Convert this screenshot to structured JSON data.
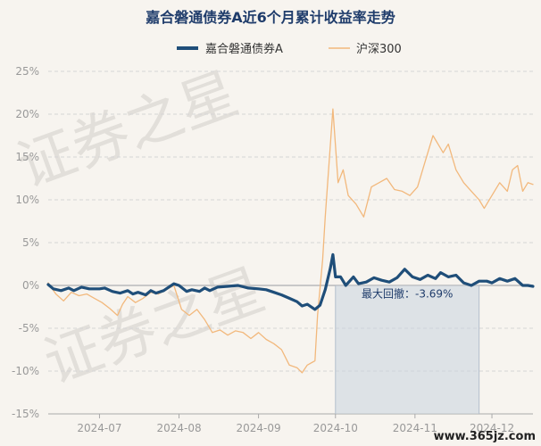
{
  "chart_data": {
    "type": "line",
    "title": "嘉合磐通债券A近6个月累计收益率走势",
    "y_ticks": [
      "25%",
      "20%",
      "15%",
      "10%",
      "5%",
      "0%",
      "-5%",
      "-10%",
      "-15%"
    ],
    "ylim": [
      -15,
      25
    ],
    "x_ticks": [
      {
        "label": "2024-07",
        "date": "2024-07-01"
      },
      {
        "label": "2024-08",
        "date": "2024-08-01"
      },
      {
        "label": "2024-09",
        "date": "2024-09-01"
      },
      {
        "label": "2024-10",
        "date": "2024-10-01"
      },
      {
        "label": "2024-11",
        "date": "2024-11-01"
      },
      {
        "label": "2024-12",
        "date": "2024-12-01"
      }
    ],
    "xlim": [
      "2024-06-11",
      "2024-12-17"
    ],
    "grid": true,
    "legend_position": "top-center",
    "series": [
      {
        "name": "嘉合磐通债券A",
        "color": "#1f4e79",
        "points": [
          [
            "2024-06-11",
            0.1
          ],
          [
            "2024-06-13",
            -0.4
          ],
          [
            "2024-06-16",
            -0.6
          ],
          [
            "2024-06-19",
            -0.3
          ],
          [
            "2024-06-21",
            -0.6
          ],
          [
            "2024-06-24",
            -0.2
          ],
          [
            "2024-06-27",
            -0.4
          ],
          [
            "2024-07-01",
            -0.4
          ],
          [
            "2024-07-03",
            -0.3
          ],
          [
            "2024-07-06",
            -0.7
          ],
          [
            "2024-07-09",
            -0.9
          ],
          [
            "2024-07-12",
            -0.6
          ],
          [
            "2024-07-14",
            -1.0
          ],
          [
            "2024-07-16",
            -0.8
          ],
          [
            "2024-07-19",
            -1.1
          ],
          [
            "2024-07-21",
            -0.6
          ],
          [
            "2024-07-23",
            -0.9
          ],
          [
            "2024-07-26",
            -0.6
          ],
          [
            "2024-07-28",
            -0.2
          ],
          [
            "2024-07-30",
            0.2
          ],
          [
            "2024-08-01",
            0.0
          ],
          [
            "2024-08-04",
            -0.7
          ],
          [
            "2024-08-06",
            -0.5
          ],
          [
            "2024-08-09",
            -0.7
          ],
          [
            "2024-08-11",
            -0.3
          ],
          [
            "2024-08-13",
            -0.6
          ],
          [
            "2024-08-16",
            -0.2
          ],
          [
            "2024-08-20",
            -0.1
          ],
          [
            "2024-08-24",
            0.0
          ],
          [
            "2024-08-28",
            -0.3
          ],
          [
            "2024-09-01",
            -0.4
          ],
          [
            "2024-09-04",
            -0.5
          ],
          [
            "2024-09-07",
            -0.8
          ],
          [
            "2024-09-10",
            -1.1
          ],
          [
            "2024-09-13",
            -1.5
          ],
          [
            "2024-09-16",
            -1.9
          ],
          [
            "2024-09-18",
            -2.4
          ],
          [
            "2024-09-20",
            -2.2
          ],
          [
            "2024-09-23",
            -2.8
          ],
          [
            "2024-09-25",
            -2.3
          ],
          [
            "2024-09-27",
            -0.5
          ],
          [
            "2024-09-29",
            2.0
          ],
          [
            "2024-09-30",
            3.6
          ],
          [
            "2024-10-01",
            1.0
          ],
          [
            "2024-10-03",
            1.0
          ],
          [
            "2024-10-05",
            0.0
          ],
          [
            "2024-10-08",
            1.0
          ],
          [
            "2024-10-10",
            0.2
          ],
          [
            "2024-10-13",
            0.4
          ],
          [
            "2024-10-16",
            0.9
          ],
          [
            "2024-10-19",
            0.6
          ],
          [
            "2024-10-22",
            0.4
          ],
          [
            "2024-10-25",
            0.9
          ],
          [
            "2024-10-28",
            1.9
          ],
          [
            "2024-10-31",
            1.0
          ],
          [
            "2024-11-03",
            0.7
          ],
          [
            "2024-11-06",
            1.2
          ],
          [
            "2024-11-09",
            0.8
          ],
          [
            "2024-11-11",
            1.5
          ],
          [
            "2024-11-14",
            1.0
          ],
          [
            "2024-11-17",
            1.2
          ],
          [
            "2024-11-20",
            0.3
          ],
          [
            "2024-11-23",
            0.0
          ],
          [
            "2024-11-26",
            0.5
          ],
          [
            "2024-11-29",
            0.5
          ],
          [
            "2024-12-01",
            0.3
          ],
          [
            "2024-12-04",
            0.8
          ],
          [
            "2024-12-07",
            0.5
          ],
          [
            "2024-12-10",
            0.8
          ],
          [
            "2024-12-13",
            0.0
          ],
          [
            "2024-12-15",
            0.0
          ],
          [
            "2024-12-17",
            -0.1
          ]
        ]
      },
      {
        "name": "沪深300",
        "color": "#f2b87c",
        "points": [
          [
            "2024-06-11",
            0.3
          ],
          [
            "2024-06-14",
            -1.0
          ],
          [
            "2024-06-17",
            -1.8
          ],
          [
            "2024-06-20",
            -0.8
          ],
          [
            "2024-06-23",
            -1.2
          ],
          [
            "2024-06-26",
            -1.0
          ],
          [
            "2024-06-29",
            -1.5
          ],
          [
            "2024-07-02",
            -2.0
          ],
          [
            "2024-07-05",
            -2.7
          ],
          [
            "2024-07-08",
            -3.5
          ],
          [
            "2024-07-10",
            -2.2
          ],
          [
            "2024-07-12",
            -1.3
          ],
          [
            "2024-07-15",
            -2.0
          ],
          [
            "2024-07-18",
            -1.5
          ],
          [
            "2024-07-21",
            -0.8
          ],
          [
            "2024-07-24",
            -1.0
          ],
          [
            "2024-07-27",
            -0.5
          ],
          [
            "2024-07-30",
            0.0
          ],
          [
            "2024-08-02",
            -2.8
          ],
          [
            "2024-08-05",
            -3.5
          ],
          [
            "2024-08-08",
            -2.8
          ],
          [
            "2024-08-11",
            -4.0
          ],
          [
            "2024-08-14",
            -5.5
          ],
          [
            "2024-08-17",
            -5.2
          ],
          [
            "2024-08-20",
            -5.8
          ],
          [
            "2024-08-23",
            -5.3
          ],
          [
            "2024-08-26",
            -5.5
          ],
          [
            "2024-08-29",
            -6.2
          ],
          [
            "2024-09-01",
            -5.5
          ],
          [
            "2024-09-04",
            -6.3
          ],
          [
            "2024-09-07",
            -6.8
          ],
          [
            "2024-09-10",
            -7.5
          ],
          [
            "2024-09-13",
            -9.3
          ],
          [
            "2024-09-16",
            -9.6
          ],
          [
            "2024-09-18",
            -10.2
          ],
          [
            "2024-09-20",
            -9.3
          ],
          [
            "2024-09-23",
            -8.8
          ],
          [
            "2024-09-24",
            -3.5
          ],
          [
            "2024-09-26",
            3.0
          ],
          [
            "2024-09-27",
            8.0
          ],
          [
            "2024-09-30",
            20.6
          ],
          [
            "2024-10-02",
            12.0
          ],
          [
            "2024-10-04",
            13.5
          ],
          [
            "2024-10-06",
            10.5
          ],
          [
            "2024-10-09",
            9.5
          ],
          [
            "2024-10-12",
            8.0
          ],
          [
            "2024-10-15",
            11.5
          ],
          [
            "2024-10-18",
            12.0
          ],
          [
            "2024-10-21",
            12.5
          ],
          [
            "2024-10-24",
            11.2
          ],
          [
            "2024-10-27",
            11.0
          ],
          [
            "2024-10-30",
            10.5
          ],
          [
            "2024-11-02",
            11.5
          ],
          [
            "2024-11-05",
            14.5
          ],
          [
            "2024-11-08",
            17.5
          ],
          [
            "2024-11-10",
            16.5
          ],
          [
            "2024-11-12",
            15.5
          ],
          [
            "2024-11-14",
            16.5
          ],
          [
            "2024-11-17",
            13.5
          ],
          [
            "2024-11-20",
            12.0
          ],
          [
            "2024-11-23",
            11.0
          ],
          [
            "2024-11-26",
            10.0
          ],
          [
            "2024-11-28",
            9.0
          ],
          [
            "2024-12-01",
            10.5
          ],
          [
            "2024-12-04",
            12.0
          ],
          [
            "2024-12-07",
            11.0
          ],
          [
            "2024-12-09",
            13.5
          ],
          [
            "2024-12-11",
            14.0
          ],
          [
            "2024-12-13",
            11.0
          ],
          [
            "2024-12-15",
            12.0
          ],
          [
            "2024-12-17",
            11.8
          ]
        ]
      }
    ],
    "max_drawdown": {
      "label": "最大回撤：-3.69%",
      "start": "2024-10-01",
      "end": "2024-11-26",
      "top_value": 0,
      "bottom_value": -15,
      "shade_color": "#c8d3df"
    },
    "watermark": {
      "lines": [
        "证券之星",
        "证券之星"
      ],
      "site": "www.365jz.com"
    }
  }
}
